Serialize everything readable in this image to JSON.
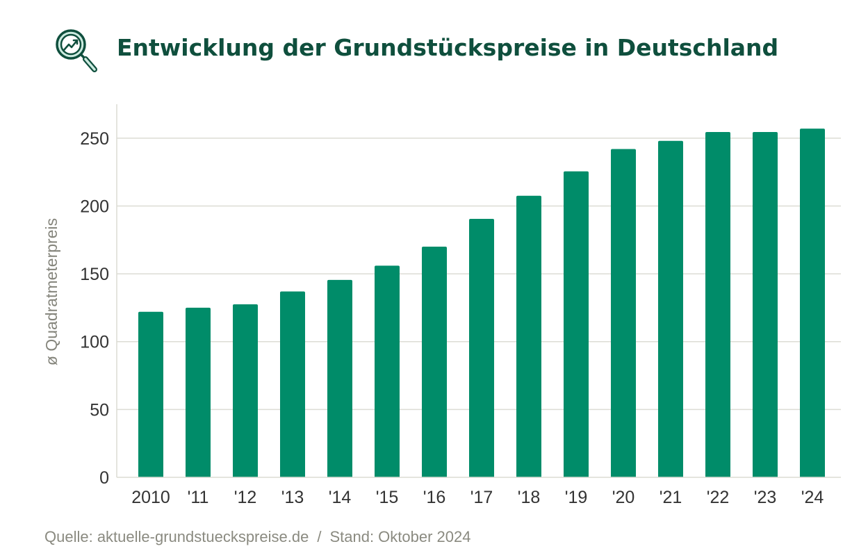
{
  "header": {
    "title": "Entwicklung der Grundstückspreise in Deutschland",
    "icon": "magnifier-trend-icon"
  },
  "colors": {
    "bar": "#008c69",
    "title": "#0f4f3d",
    "grid": "#dcdcd4",
    "footer": "#8a8a80"
  },
  "chart_data": {
    "type": "bar",
    "title": "Entwicklung der Grundstückspreise in Deutschland",
    "xlabel": "",
    "ylabel": "ø Quadratmeterpreis",
    "categories": [
      "2010",
      "'11",
      "'12",
      "'13",
      "'14",
      "'15",
      "'16",
      "'17",
      "'18",
      "'19",
      "'20",
      "'21",
      "'22",
      "'23",
      "'24"
    ],
    "values": [
      122,
      125,
      127.5,
      137,
      145.5,
      156,
      170,
      190.5,
      207.5,
      225.5,
      242,
      248,
      254.5,
      254.5,
      257
    ],
    "ylim": [
      0,
      275
    ],
    "yticks": [
      0,
      50,
      100,
      150,
      200,
      250
    ],
    "grid": true,
    "legend": "none"
  },
  "footer": {
    "source": "Quelle: aktuelle-grundstueckspreise.de",
    "separator": "/",
    "date": "Stand: Oktober 2024"
  }
}
